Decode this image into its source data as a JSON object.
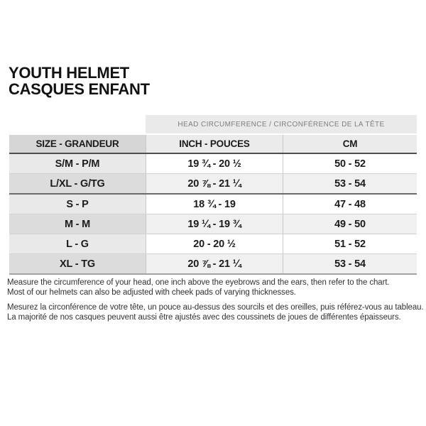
{
  "page": {
    "title_line1": "YOUTH HELMET",
    "title_line2": "CASQUES ENFANT"
  },
  "table": {
    "banner": "HEAD CIRCUMFERENCE / CIRCONFÉRENCE DE LA TÊTE",
    "columns": {
      "size": "SIZE - GRANDEUR",
      "inch": "INCH - POUCES",
      "cm": "CM"
    },
    "rows": [
      {
        "size": "S/M - P/M",
        "inch": "19 ¾ - 20 ½",
        "cm": "50 - 52"
      },
      {
        "size": "L/XL - G/TG",
        "inch": "20 ⅞ - 21 ¼",
        "cm": "53 - 54"
      },
      {
        "size": "S - P",
        "inch": "18 ¾ - 19",
        "cm": "47 - 48"
      },
      {
        "size": "M - M",
        "inch": "19 ¼ - 19 ¾",
        "cm": "49 - 50"
      },
      {
        "size": "L - G",
        "inch": "20 - 20 ½",
        "cm": "51 - 52"
      },
      {
        "size": "XL - TG",
        "inch": "20 ⅞ - 21 ¼",
        "cm": "53 - 54"
      }
    ]
  },
  "notes": {
    "en_line1": "Measure the circumference of your head, one inch above the eyebrows and the ears, then refer to the chart.",
    "en_line2": "Most of our helmets can also be adjusted with cheek pads of varying thicknesses.",
    "fr_line1": "Mesurez la circonférence de votre tête, un pouce au-dessus des sourcils et des oreilles, puis référez-vous au tableau.",
    "fr_line2": "La majorité de nos casques peuvent aussi être ajustés avec des coussinets de joues de différentes épaisseurs."
  },
  "colors": {
    "banner_bg": "#eaeaea",
    "banner_text": "#7e7e7e",
    "header_col1_bg": "#d6d6d6",
    "header_data_bg": "#ebebeb",
    "row_odd_col1_bg": "#e9e9e9",
    "row_odd_data_bg": "#ffffff",
    "row_even_col1_bg": "#dcdcdc",
    "row_even_data_bg": "#f0f0f0",
    "header_border": "#4f4f4f",
    "text": "#1b1b1b"
  }
}
